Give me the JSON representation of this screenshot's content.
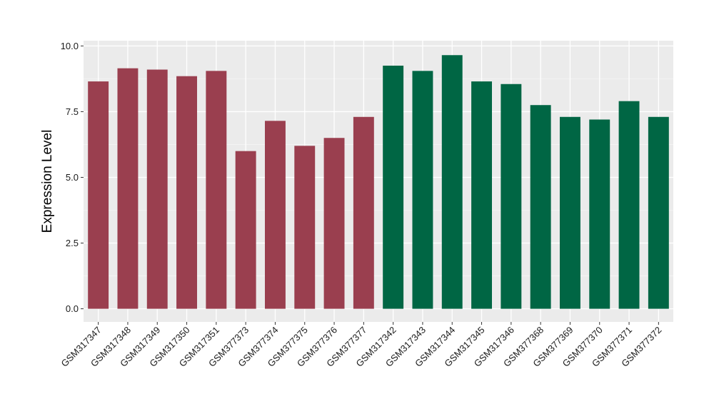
{
  "chart_data": {
    "type": "bar",
    "title": "",
    "xlabel": "",
    "ylabel": "Expression Level",
    "ylim": [
      -0.5,
      10.2
    ],
    "yticks": [
      0.0,
      2.5,
      5.0,
      7.5,
      10.0
    ],
    "ytick_labels": [
      "0.0",
      "2.5",
      "5.0",
      "7.5",
      "10.0"
    ],
    "grid": true,
    "background": "#ebebeb",
    "group_colors": {
      "group1": "#9a3f4f",
      "group2": "#006644"
    },
    "categories": [
      "GSM317347",
      "GSM317348",
      "GSM317349",
      "GSM317350",
      "GSM317351",
      "GSM377373",
      "GSM377374",
      "GSM377375",
      "GSM377376",
      "GSM377377",
      "GSM317342",
      "GSM317343",
      "GSM317344",
      "GSM317345",
      "GSM317346",
      "GSM377368",
      "GSM377369",
      "GSM377370",
      "GSM377371",
      "GSM377372"
    ],
    "values": [
      8.65,
      9.15,
      9.1,
      8.85,
      9.05,
      6.0,
      7.15,
      6.2,
      6.5,
      7.3,
      9.25,
      9.05,
      9.65,
      8.65,
      8.55,
      7.75,
      7.3,
      7.2,
      7.9,
      7.3
    ],
    "groups": [
      "group1",
      "group1",
      "group1",
      "group1",
      "group1",
      "group1",
      "group1",
      "group1",
      "group1",
      "group1",
      "group2",
      "group2",
      "group2",
      "group2",
      "group2",
      "group2",
      "group2",
      "group2",
      "group2",
      "group2"
    ]
  }
}
